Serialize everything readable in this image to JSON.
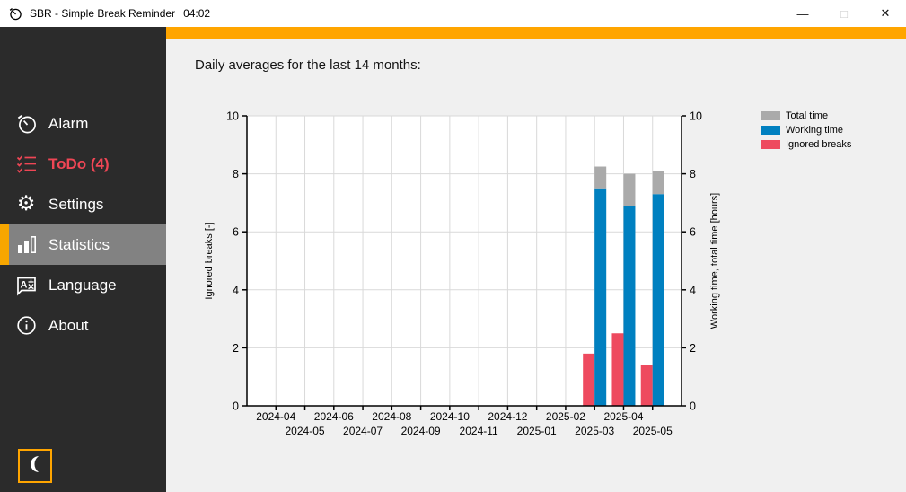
{
  "window": {
    "app_title": "SBR - Simple Break Reminder",
    "clock": "04:02",
    "controls": {
      "minimize": "—",
      "maximize": "□",
      "close": "✕"
    }
  },
  "sidebar": {
    "items": [
      {
        "label": "Alarm",
        "icon": "stopwatch-icon"
      },
      {
        "label": "ToDo (4)",
        "icon": "todo-list-icon"
      },
      {
        "label": "Settings",
        "icon": "gear-icon"
      },
      {
        "label": "Statistics",
        "icon": "bar-chart-icon",
        "active": true
      },
      {
        "label": "Language",
        "icon": "translate-icon"
      },
      {
        "label": "About",
        "icon": "info-icon"
      }
    ],
    "gear_glyph": "⚙",
    "accent_color": "#ffa500",
    "active_bg": "#828282",
    "todo_color": "#ef4655"
  },
  "main": {
    "heading": "Daily averages for the last 14 months:"
  },
  "chart_data": {
    "type": "bar",
    "title": "Daily averages for the last 14 months:",
    "categories": [
      "2024-04",
      "2024-05",
      "2024-06",
      "2024-07",
      "2024-08",
      "2024-09",
      "2024-10",
      "2024-11",
      "2024-12",
      "2025-01",
      "2025-02",
      "2025-03",
      "2025-04",
      "2025-05"
    ],
    "series": [
      {
        "name": "Total time",
        "color": "#aaaaaa",
        "values": [
          0,
          0,
          0,
          0,
          0,
          0,
          0,
          0,
          0,
          0,
          0,
          8.25,
          8.0,
          8.1
        ]
      },
      {
        "name": "Working time",
        "color": "#0080c0",
        "values": [
          0,
          0,
          0,
          0,
          0,
          0,
          0,
          0,
          0,
          0,
          0,
          7.5,
          6.9,
          7.3
        ]
      },
      {
        "name": "Ignored breaks",
        "color": "#ee4a5f",
        "values": [
          0,
          0,
          0,
          0,
          0,
          0,
          0,
          0,
          0,
          0,
          0,
          1.8,
          2.5,
          1.4
        ]
      }
    ],
    "stacking": "Total time is drawn stacked on top of Working time; Ignored breaks is a separate bar left of each stack",
    "ylabel_left": "Ignored breaks [-]",
    "ylabel_right": "Working time, total time [hours]",
    "ylim": [
      0,
      10
    ],
    "yticks": [
      0,
      2,
      4,
      6,
      8,
      10
    ],
    "grid": true,
    "legend_position": "top-right",
    "plot_bg": "#ffffff",
    "grid_color": "#d9d9d9",
    "axis_color": "#000000"
  }
}
